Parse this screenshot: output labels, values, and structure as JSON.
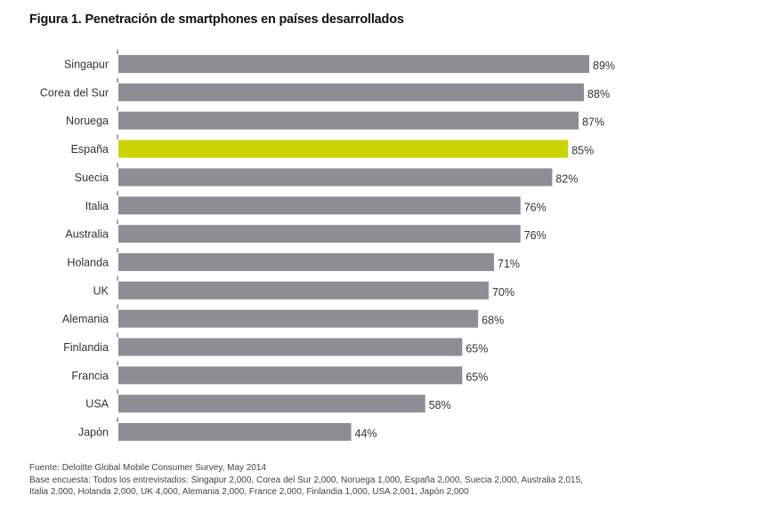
{
  "chart_data": {
    "type": "bar",
    "orientation": "horizontal",
    "title": "Figura 1. Penetración de smartphones en países desarrollados",
    "categories": [
      "Singapur",
      "Corea del Sur",
      "Noruega",
      "España",
      "Suecia",
      "Italia",
      "Australia",
      "Holanda",
      "UK",
      "Alemania",
      "Finlandia",
      "Francia",
      "USA",
      "Japón"
    ],
    "values": [
      89,
      88,
      87,
      85,
      82,
      76,
      76,
      71,
      70,
      68,
      65,
      65,
      58,
      44
    ],
    "value_labels": [
      "89%",
      "88%",
      "87%",
      "85%",
      "82%",
      "76%",
      "76%",
      "71%",
      "70%",
      "68%",
      "65%",
      "65%",
      "58%",
      "44%"
    ],
    "highlight": "España",
    "colors": {
      "default": "#8e8d91",
      "highlight": "#c9d400"
    },
    "xlabel": "",
    "ylabel": "",
    "xlim": [
      0,
      100
    ],
    "grid": false,
    "legend": "none"
  },
  "footer": {
    "source": "Fuente: Deloitte Global Mobile Consumer Survey, May 2014",
    "base_line1": "Base encuesta: Todos los entrevistados: Singapur 2,000, Corea del Sur 2,000, Noruega  1,000, España 2,000, Suecia 2,000, Australia 2,015,",
    "base_line2": "Italia 2,000, Holanda 2,000, UK 4,000, Alemania 2,000, France 2,000, Finlandia 1,000, USA 2,001, Japón 2,000"
  }
}
